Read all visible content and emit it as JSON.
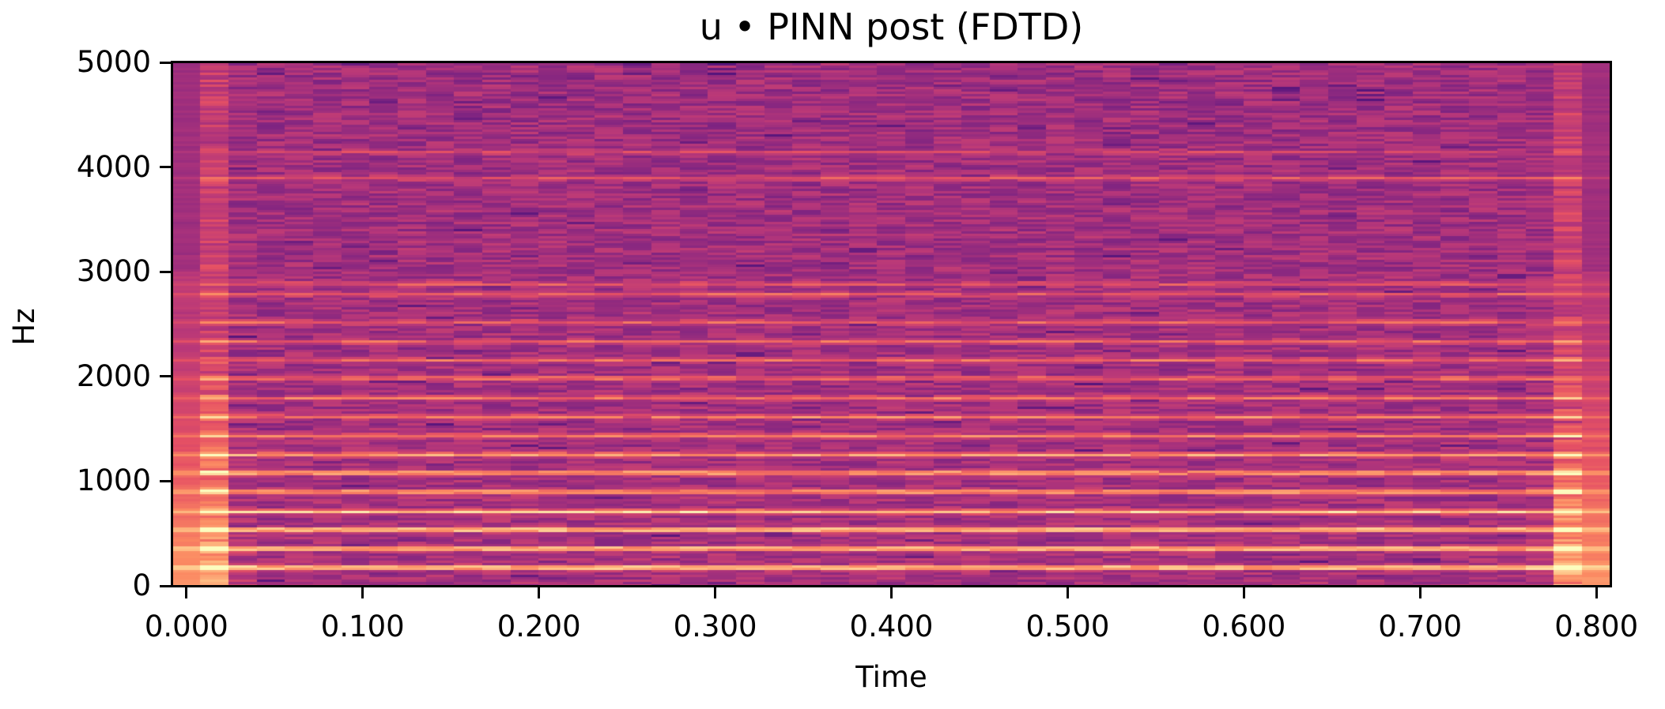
{
  "chart_data": {
    "type": "heatmap",
    "subtype": "spectrogram",
    "title": "u • PINN post (FDTD)",
    "xlabel": "Time",
    "ylabel": "Hz",
    "xlim": [
      -0.008,
      0.808
    ],
    "ylim": [
      0,
      5000
    ],
    "x_ticks": [
      0.0,
      0.1,
      0.2,
      0.3,
      0.4,
      0.5,
      0.6,
      0.7,
      0.8
    ],
    "x_tick_labels": [
      "0.000",
      "0.100",
      "0.200",
      "0.300",
      "0.400",
      "0.500",
      "0.600",
      "0.700",
      "0.800"
    ],
    "y_ticks": [
      0,
      1000,
      2000,
      3000,
      4000,
      5000
    ],
    "y_tick_labels": [
      "0",
      "1000",
      "2000",
      "3000",
      "4000",
      "5000"
    ],
    "grid": false,
    "legend": null,
    "colormap": "magma",
    "n_time_frames": 51,
    "frame_hop_s": 0.016,
    "harmonic_bands_hz": [
      {
        "freq": 181,
        "strength": 1.0
      },
      {
        "freq": 362,
        "strength": 0.95
      },
      {
        "freq": 543,
        "strength": 1.0
      },
      {
        "freq": 716,
        "strength": 0.9
      },
      {
        "freq": 905,
        "strength": 0.75
      },
      {
        "freq": 1086,
        "strength": 0.8
      },
      {
        "freq": 1260,
        "strength": 0.72
      },
      {
        "freq": 1440,
        "strength": 0.55
      },
      {
        "freq": 1621,
        "strength": 0.55
      },
      {
        "freq": 1802,
        "strength": 0.5
      },
      {
        "freq": 1990,
        "strength": 0.5
      },
      {
        "freq": 2164,
        "strength": 0.45
      },
      {
        "freq": 2338,
        "strength": 0.45
      },
      {
        "freq": 2526,
        "strength": 0.4
      },
      {
        "freq": 2790,
        "strength": 0.4
      },
      {
        "freq": 2890,
        "strength": 0.35
      },
      {
        "freq": 3900,
        "strength": 0.35
      },
      {
        "freq": 4148,
        "strength": 0.25
      }
    ],
    "edge_frames": {
      "start_bright_frames": [
        0,
        1
      ],
      "end_bright_frames": [
        49,
        50
      ]
    },
    "colors": {
      "low": "#3b0f70",
      "mid_low": "#8c2981",
      "mid": "#b73779",
      "mid_high": "#de4968",
      "high": "#f7705c",
      "higher": "#fe9f6d",
      "top": "#fcfdbf"
    }
  }
}
